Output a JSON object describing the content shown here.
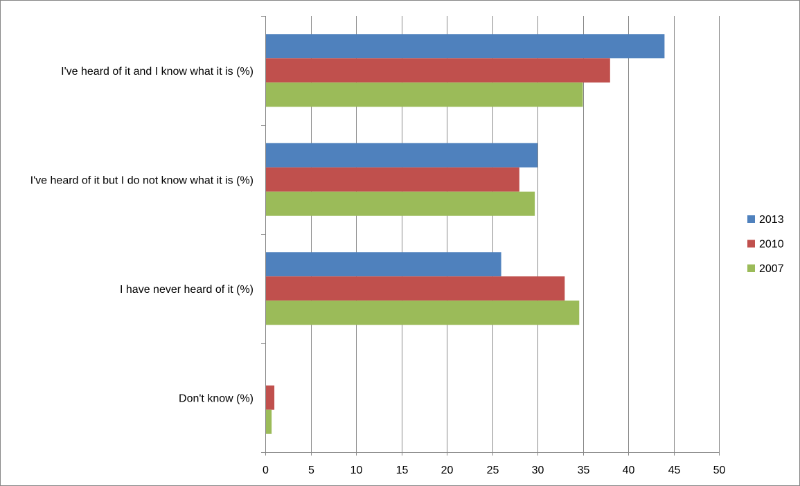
{
  "chart_data": {
    "type": "bar",
    "orientation": "horizontal",
    "categories": [
      "I've heard of it and I know what it is (%)",
      "I've heard of it but I do not know what it is (%)",
      "I have never heard of it (%)",
      "Don't know (%)"
    ],
    "series": [
      {
        "name": "2013",
        "color": "#4F81BD",
        "values": [
          44,
          30,
          26,
          0
        ]
      },
      {
        "name": "2010",
        "color": "#C0504D",
        "values": [
          38,
          28,
          33,
          1
        ]
      },
      {
        "name": "2007",
        "color": "#9BBB59",
        "values": [
          35,
          29.7,
          34.6,
          0.7
        ]
      }
    ],
    "xlim": [
      0,
      50
    ],
    "xticks": [
      0,
      5,
      10,
      15,
      20,
      25,
      30,
      35,
      40,
      45,
      50
    ],
    "grid": "vertical",
    "legend": "right"
  }
}
